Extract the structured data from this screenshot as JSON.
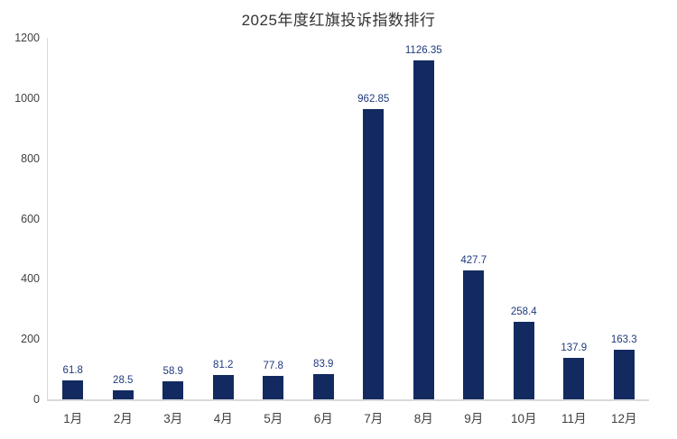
{
  "chart_data": {
    "type": "bar",
    "title": "2025年度红旗投诉指数排行",
    "categories": [
      "1月",
      "2月",
      "3月",
      "4月",
      "5月",
      "6月",
      "7月",
      "8月",
      "9月",
      "10月",
      "11月",
      "12月"
    ],
    "values": [
      61.8,
      28.5,
      58.9,
      81.2,
      77.8,
      83.9,
      962.85,
      1126.35,
      427.7,
      258.4,
      137.9,
      163.3
    ],
    "ylabel": "",
    "xlabel": "",
    "ylim": [
      0,
      1200
    ],
    "ytick_step": 200,
    "ytick_labels": [
      "0",
      "200",
      "400",
      "600",
      "800",
      "1000",
      "1200"
    ],
    "grid": false,
    "legend_position": "none",
    "bar_color": "#132a60",
    "value_label_color": "#1e3a7c",
    "axis_text_color": "#404040",
    "axis_line_color": "#d9d9d9",
    "title_color": "#333333",
    "background_color": "#ffffff"
  }
}
